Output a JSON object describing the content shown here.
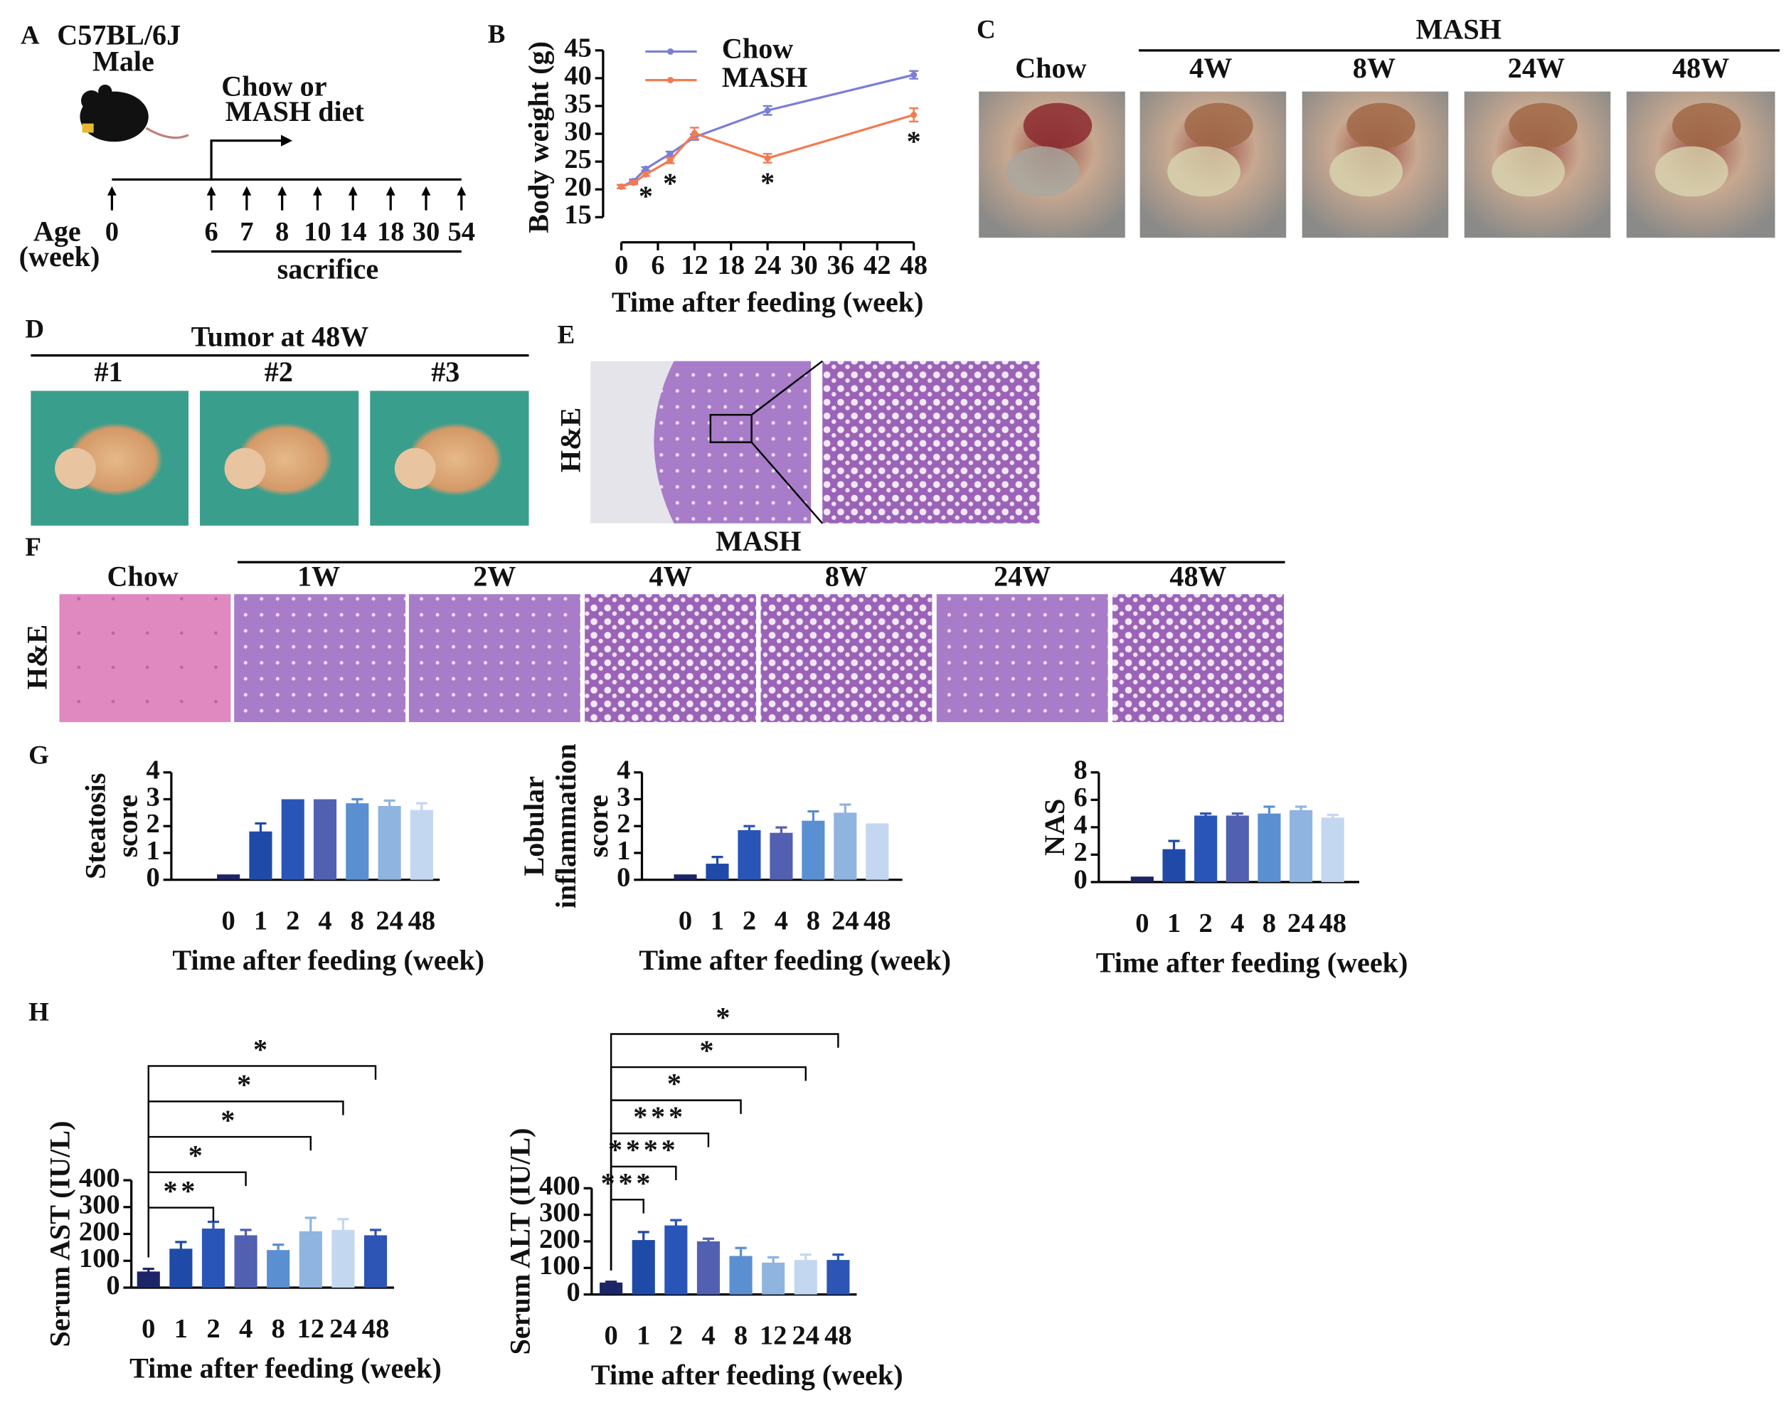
{
  "panel_labels": [
    "A",
    "B",
    "C",
    "D",
    "E",
    "F",
    "G",
    "H"
  ],
  "panel_a": {
    "strain": "C57BL/6J",
    "sex": "Male",
    "diet": [
      "Chow or",
      "MASH diet"
    ],
    "age_label": [
      "Age",
      "(week)"
    ],
    "ages": [
      "0",
      "6",
      "7",
      "8",
      "10",
      "14",
      "18",
      "30",
      "54"
    ],
    "sacrifice": "sacrifice"
  },
  "panel_c": {
    "group": "MASH",
    "labels": [
      "Chow",
      "4W",
      "8W",
      "24W",
      "48W"
    ]
  },
  "panel_d": {
    "title": "Tumor at 48W",
    "labels": [
      "#1",
      "#2",
      "#3"
    ]
  },
  "panel_e": {
    "stain": "H&E"
  },
  "panel_f": {
    "group": "MASH",
    "labels": [
      "Chow",
      "1W",
      "2W",
      "4W",
      "8W",
      "24W",
      "48W"
    ],
    "stain": "H&E"
  },
  "chart_data": [
    {
      "type": "line",
      "ylabel": "Body weight (g)",
      "xlabel": "Time after feeding (week)",
      "x": [
        0,
        2,
        4,
        8,
        12,
        24,
        48
      ],
      "xlim": [
        0,
        48
      ],
      "xticks": [
        0,
        6,
        12,
        18,
        24,
        30,
        36,
        42,
        48
      ],
      "ylim": [
        15,
        45
      ],
      "yticks": [
        15,
        20,
        25,
        30,
        35,
        40,
        45
      ],
      "series": [
        {
          "name": "Chow",
          "color": "#7a7fd6",
          "values": [
            20.5,
            21.5,
            23.7,
            26.4,
            29.4,
            34.2,
            40.6
          ],
          "errors": [
            0.3,
            0.3,
            0.3,
            0.4,
            0.5,
            0.8,
            0.7
          ]
        },
        {
          "name": "MASH",
          "color": "#f27b52",
          "values": [
            20.5,
            21.2,
            22.7,
            25.2,
            30.1,
            25.6,
            33.4
          ],
          "errors": [
            0.3,
            0.3,
            0.3,
            0.5,
            1,
            0.8,
            1.2
          ]
        }
      ],
      "annotations": [
        {
          "x": 4,
          "label": "*"
        },
        {
          "x": 8,
          "label": "*"
        },
        {
          "x": 24,
          "label": "*"
        },
        {
          "x": 48,
          "label": "*"
        }
      ]
    },
    {
      "type": "bar",
      "ylabel": [
        "Steatosis",
        "score"
      ],
      "xlabel": "Time after feeding (week)",
      "categories": [
        "0",
        "1",
        "2",
        "4",
        "8",
        "24",
        "48"
      ],
      "values": [
        0.2,
        1.8,
        3,
        3,
        2.85,
        2.75,
        2.6
      ],
      "errors": [
        0,
        0.3,
        0,
        0,
        0.15,
        0.2,
        0.25
      ],
      "colors": [
        "#1c2566",
        "#1f4aa8",
        "#2a55b8",
        "#5260b2",
        "#5a8fd2",
        "#8fb4e0",
        "#c4d7f0"
      ],
      "ylim": [
        0,
        4
      ],
      "yticks": [
        0,
        1,
        2,
        3,
        4
      ]
    },
    {
      "type": "bar",
      "ylabel": [
        "Lobular",
        "inflammation",
        "score"
      ],
      "xlabel": "Time after feeding (week)",
      "categories": [
        "0",
        "1",
        "2",
        "4",
        "8",
        "24",
        "48"
      ],
      "values": [
        0.2,
        0.6,
        1.85,
        1.75,
        2.2,
        2.5,
        2.1
      ],
      "errors": [
        0,
        0.25,
        0.15,
        0.2,
        0.35,
        0.3,
        0
      ],
      "colors": [
        "#1c2566",
        "#1f4aa8",
        "#2a55b8",
        "#5260b2",
        "#5a8fd2",
        "#8fb4e0",
        "#c4d7f0"
      ],
      "ylim": [
        0,
        4
      ],
      "yticks": [
        0,
        1,
        2,
        3,
        4
      ]
    },
    {
      "type": "bar",
      "ylabel": [
        "NAS"
      ],
      "xlabel": "Time after feeding (week)",
      "categories": [
        "0",
        "1",
        "2",
        "4",
        "8",
        "24",
        "48"
      ],
      "values": [
        0.4,
        2.4,
        4.85,
        4.85,
        5,
        5.25,
        4.7
      ],
      "errors": [
        0,
        0.6,
        0.15,
        0.15,
        0.5,
        0.25,
        0.2
      ],
      "colors": [
        "#1c2566",
        "#1f4aa8",
        "#2a55b8",
        "#5260b2",
        "#5a8fd2",
        "#8fb4e0",
        "#c4d7f0"
      ],
      "ylim": [
        0,
        8
      ],
      "yticks": [
        0,
        2,
        4,
        6,
        8
      ]
    },
    {
      "type": "bar",
      "ylabel": [
        "Serum AST (IU/L)"
      ],
      "xlabel": "Time after feeding (week)",
      "categories": [
        "0",
        "1",
        "2",
        "4",
        "8",
        "12",
        "24",
        "48"
      ],
      "values": [
        60,
        145,
        220,
        195,
        140,
        210,
        215,
        195
      ],
      "errors": [
        10,
        25,
        25,
        20,
        20,
        50,
        40,
        20
      ],
      "colors": [
        "#1c2566",
        "#1f4aa8",
        "#2a55b8",
        "#5260b2",
        "#5a8fd2",
        "#8fb4e0",
        "#c4d7f0",
        "#2d55b5"
      ],
      "ylim": [
        0,
        400
      ],
      "yticks": [
        0,
        100,
        200,
        300,
        400
      ],
      "brackets": [
        {
          "from": "0",
          "to": "2",
          "label": "**"
        },
        {
          "from": "0",
          "to": "4",
          "label": "*"
        },
        {
          "from": "0",
          "to": "12",
          "label": "*"
        },
        {
          "from": "0",
          "to": "24",
          "label": "*"
        },
        {
          "from": "0",
          "to": "48",
          "label": "*"
        }
      ]
    },
    {
      "type": "bar",
      "ylabel": [
        "Serum ALT (IU/L)"
      ],
      "xlabel": "Time after feeding (week)",
      "categories": [
        "0",
        "1",
        "2",
        "4",
        "8",
        "12",
        "24",
        "48"
      ],
      "values": [
        45,
        205,
        260,
        200,
        145,
        120,
        130,
        130
      ],
      "errors": [
        3,
        30,
        20,
        10,
        30,
        20,
        20,
        20
      ],
      "colors": [
        "#1c2566",
        "#1f4aa8",
        "#2a55b8",
        "#5260b2",
        "#5a8fd2",
        "#8fb4e0",
        "#c4d7f0",
        "#2d55b5"
      ],
      "ylim": [
        0,
        400
      ],
      "yticks": [
        0,
        100,
        200,
        300,
        400
      ],
      "brackets": [
        {
          "from": "0",
          "to": "1",
          "label": "***"
        },
        {
          "from": "0",
          "to": "2",
          "label": "****"
        },
        {
          "from": "0",
          "to": "4",
          "label": "***"
        },
        {
          "from": "0",
          "to": "8",
          "label": "*"
        },
        {
          "from": "0",
          "to": "24",
          "label": "*"
        },
        {
          "from": "0",
          "to": "48",
          "label": "*"
        }
      ]
    }
  ]
}
